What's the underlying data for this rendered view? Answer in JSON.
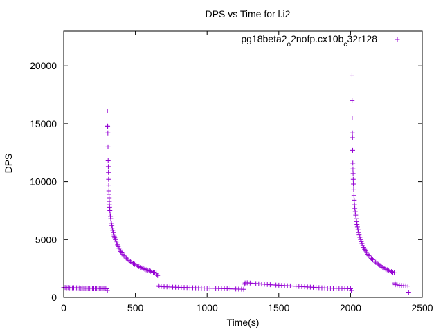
{
  "chart_data": {
    "type": "scatter",
    "title": "DPS vs Time for l.i2",
    "xlabel": "Time(s)",
    "ylabel": "DPS",
    "xlim": [
      0,
      2500
    ],
    "ylim": [
      0,
      23000
    ],
    "xticks": [
      0,
      500,
      1000,
      1500,
      2000,
      2500
    ],
    "yticks": [
      0,
      5000,
      10000,
      15000,
      20000
    ],
    "xtick_labels": [
      "0",
      "500",
      "1000",
      "1500",
      "2000",
      "2500"
    ],
    "ytick_labels": [
      "0",
      "5000",
      "10000",
      "15000",
      "20000"
    ],
    "grid": false,
    "legend_position": "top-right",
    "marker": "+",
    "series": [
      {
        "name": "pg18beta2_o2nofp.cx10b_c32r128",
        "name_parts": [
          {
            "text": "pg18beta2",
            "sub": false
          },
          {
            "text": "o",
            "sub": true
          },
          {
            "text": "2nofp.cx10b",
            "sub": false
          },
          {
            "text": "c",
            "sub": true
          },
          {
            "text": "32r128",
            "sub": false
          }
        ],
        "color": "#9400d3",
        "points": [
          [
            0,
            850
          ],
          [
            10,
            860
          ],
          [
            20,
            840
          ],
          [
            30,
            850
          ],
          [
            40,
            830
          ],
          [
            50,
            845
          ],
          [
            60,
            830
          ],
          [
            70,
            840
          ],
          [
            80,
            820
          ],
          [
            90,
            830
          ],
          [
            100,
            815
          ],
          [
            110,
            825
          ],
          [
            120,
            810
          ],
          [
            130,
            815
          ],
          [
            140,
            800
          ],
          [
            150,
            810
          ],
          [
            160,
            795
          ],
          [
            170,
            800
          ],
          [
            180,
            790
          ],
          [
            190,
            795
          ],
          [
            200,
            785
          ],
          [
            210,
            790
          ],
          [
            220,
            780
          ],
          [
            230,
            785
          ],
          [
            240,
            775
          ],
          [
            250,
            770
          ],
          [
            260,
            765
          ],
          [
            270,
            760
          ],
          [
            280,
            755
          ],
          [
            290,
            750
          ],
          [
            300,
            745
          ],
          [
            305,
            600
          ],
          [
            305,
            16100
          ],
          [
            306,
            14800
          ],
          [
            307,
            14750
          ],
          [
            308,
            14200
          ],
          [
            309,
            13000
          ],
          [
            310,
            11800
          ],
          [
            311,
            11300
          ],
          [
            312,
            10800
          ],
          [
            313,
            10200
          ],
          [
            314,
            9700
          ],
          [
            315,
            9200
          ],
          [
            316,
            8900
          ],
          [
            317,
            8600
          ],
          [
            318,
            8300
          ],
          [
            319,
            8000
          ],
          [
            320,
            7800
          ],
          [
            322,
            7500
          ],
          [
            324,
            7200
          ],
          [
            326,
            7000
          ],
          [
            328,
            6800
          ],
          [
            330,
            6600
          ],
          [
            333,
            6400
          ],
          [
            336,
            6200
          ],
          [
            339,
            6000
          ],
          [
            342,
            5800
          ],
          [
            345,
            5600
          ],
          [
            348,
            5450
          ],
          [
            352,
            5300
          ],
          [
            356,
            5150
          ],
          [
            360,
            5000
          ],
          [
            365,
            4850
          ],
          [
            370,
            4700
          ],
          [
            375,
            4550
          ],
          [
            380,
            4400
          ],
          [
            386,
            4250
          ],
          [
            392,
            4100
          ],
          [
            398,
            3980
          ],
          [
            405,
            3850
          ],
          [
            412,
            3720
          ],
          [
            420,
            3600
          ],
          [
            428,
            3500
          ],
          [
            436,
            3400
          ],
          [
            445,
            3300
          ],
          [
            455,
            3200
          ],
          [
            465,
            3110
          ],
          [
            475,
            3020
          ],
          [
            485,
            2940
          ],
          [
            495,
            2860
          ],
          [
            505,
            2790
          ],
          [
            515,
            2720
          ],
          [
            525,
            2660
          ],
          [
            535,
            2600
          ],
          [
            545,
            2545
          ],
          [
            555,
            2490
          ],
          [
            565,
            2440
          ],
          [
            575,
            2390
          ],
          [
            585,
            2345
          ],
          [
            595,
            2300
          ],
          [
            605,
            2260
          ],
          [
            615,
            2220
          ],
          [
            625,
            2180
          ],
          [
            635,
            2140
          ],
          [
            645,
            2100
          ],
          [
            650,
            1950
          ],
          [
            655,
            1900
          ],
          [
            660,
            1000
          ],
          [
            665,
            950
          ],
          [
            680,
            930
          ],
          [
            700,
            920
          ],
          [
            720,
            910
          ],
          [
            740,
            900
          ],
          [
            760,
            890
          ],
          [
            780,
            880
          ],
          [
            800,
            870
          ],
          [
            820,
            865
          ],
          [
            840,
            860
          ],
          [
            860,
            850
          ],
          [
            880,
            845
          ],
          [
            900,
            840
          ],
          [
            920,
            830
          ],
          [
            940,
            825
          ],
          [
            960,
            815
          ],
          [
            980,
            810
          ],
          [
            1000,
            800
          ],
          [
            1020,
            795
          ],
          [
            1040,
            785
          ],
          [
            1060,
            780
          ],
          [
            1080,
            770
          ],
          [
            1100,
            765
          ],
          [
            1120,
            755
          ],
          [
            1140,
            750
          ],
          [
            1160,
            740
          ],
          [
            1180,
            735
          ],
          [
            1200,
            725
          ],
          [
            1220,
            720
          ],
          [
            1240,
            710
          ],
          [
            1255,
            700
          ],
          [
            1260,
            1150
          ],
          [
            1265,
            1250
          ],
          [
            1280,
            1260
          ],
          [
            1300,
            1240
          ],
          [
            1320,
            1220
          ],
          [
            1340,
            1200
          ],
          [
            1360,
            1180
          ],
          [
            1380,
            1160
          ],
          [
            1400,
            1140
          ],
          [
            1420,
            1120
          ],
          [
            1440,
            1100
          ],
          [
            1460,
            1085
          ],
          [
            1480,
            1070
          ],
          [
            1500,
            1055
          ],
          [
            1520,
            1040
          ],
          [
            1540,
            1025
          ],
          [
            1560,
            1010
          ],
          [
            1580,
            995
          ],
          [
            1600,
            980
          ],
          [
            1620,
            965
          ],
          [
            1640,
            950
          ],
          [
            1660,
            935
          ],
          [
            1680,
            920
          ],
          [
            1700,
            905
          ],
          [
            1720,
            890
          ],
          [
            1740,
            875
          ],
          [
            1760,
            860
          ],
          [
            1780,
            845
          ],
          [
            1800,
            830
          ],
          [
            1820,
            820
          ],
          [
            1840,
            810
          ],
          [
            1860,
            800
          ],
          [
            1880,
            790
          ],
          [
            1900,
            780
          ],
          [
            1920,
            775
          ],
          [
            1940,
            770
          ],
          [
            1960,
            765
          ],
          [
            1980,
            760
          ],
          [
            2000,
            750
          ],
          [
            2005,
            600
          ],
          [
            2010,
            19200
          ],
          [
            2011,
            17000
          ],
          [
            2012,
            15500
          ],
          [
            2013,
            14200
          ],
          [
            2014,
            13800
          ],
          [
            2015,
            12700
          ],
          [
            2016,
            11600
          ],
          [
            2017,
            11100
          ],
          [
            2018,
            10700
          ],
          [
            2019,
            10200
          ],
          [
            2020,
            9800
          ],
          [
            2022,
            9300
          ],
          [
            2024,
            8800
          ],
          [
            2026,
            8400
          ],
          [
            2028,
            8000
          ],
          [
            2030,
            7700
          ],
          [
            2033,
            7400
          ],
          [
            2036,
            7100
          ],
          [
            2039,
            6800
          ],
          [
            2042,
            6550
          ],
          [
            2045,
            6300
          ],
          [
            2048,
            6100
          ],
          [
            2052,
            5850
          ],
          [
            2056,
            5600
          ],
          [
            2060,
            5400
          ],
          [
            2065,
            5200
          ],
          [
            2070,
            5000
          ],
          [
            2075,
            4820
          ],
          [
            2080,
            4650
          ],
          [
            2086,
            4480
          ],
          [
            2092,
            4320
          ],
          [
            2098,
            4170
          ],
          [
            2105,
            4020
          ],
          [
            2112,
            3880
          ],
          [
            2120,
            3740
          ],
          [
            2128,
            3610
          ],
          [
            2136,
            3490
          ],
          [
            2145,
            3370
          ],
          [
            2155,
            3250
          ],
          [
            2165,
            3140
          ],
          [
            2175,
            3040
          ],
          [
            2185,
            2940
          ],
          [
            2195,
            2850
          ],
          [
            2205,
            2760
          ],
          [
            2215,
            2680
          ],
          [
            2225,
            2600
          ],
          [
            2235,
            2530
          ],
          [
            2245,
            2460
          ],
          [
            2255,
            2400
          ],
          [
            2265,
            2340
          ],
          [
            2275,
            2280
          ],
          [
            2285,
            2230
          ],
          [
            2295,
            2180
          ],
          [
            2305,
            2130
          ],
          [
            2310,
            1250
          ],
          [
            2312,
            1100
          ],
          [
            2325,
            1080
          ],
          [
            2340,
            1050
          ],
          [
            2355,
            1030
          ],
          [
            2370,
            1010
          ],
          [
            2385,
            1000
          ],
          [
            2400,
            980
          ],
          [
            2405,
            450
          ]
        ]
      }
    ]
  }
}
